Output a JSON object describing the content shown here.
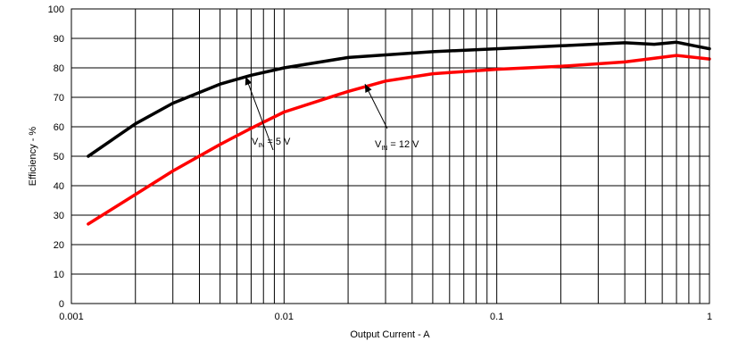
{
  "chart_data": {
    "type": "line",
    "x_scale": "log",
    "xlim": [
      0.001,
      1
    ],
    "ylim": [
      0,
      100
    ],
    "x_ticks": [
      0.001,
      0.01,
      0.1,
      1
    ],
    "x_tick_labels": [
      "0.001",
      "0.01",
      "0.1",
      "1"
    ],
    "y_ticks": [
      0,
      10,
      20,
      30,
      40,
      50,
      60,
      70,
      80,
      90,
      100
    ],
    "y_tick_labels": [
      "0",
      "10",
      "20",
      "30",
      "40",
      "50",
      "60",
      "70",
      "80",
      "90",
      "100"
    ],
    "xlabel": "Output Current - A",
    "ylabel": "Efficiency - %",
    "grid": true,
    "series": [
      {
        "name": "VIN = 5 V",
        "color": "#000000",
        "points": [
          [
            0.0012,
            50
          ],
          [
            0.002,
            61
          ],
          [
            0.003,
            68
          ],
          [
            0.005,
            74.5
          ],
          [
            0.007,
            77.5
          ],
          [
            0.01,
            80
          ],
          [
            0.02,
            83.5
          ],
          [
            0.05,
            85.5
          ],
          [
            0.1,
            86.5
          ],
          [
            0.2,
            87.5
          ],
          [
            0.4,
            88.5
          ],
          [
            0.55,
            88
          ],
          [
            0.7,
            88.7
          ],
          [
            0.85,
            87.5
          ],
          [
            1,
            86.5
          ]
        ]
      },
      {
        "name": "VIN = 12 V",
        "color": "#ff0000",
        "points": [
          [
            0.0012,
            27
          ],
          [
            0.002,
            37
          ],
          [
            0.003,
            45
          ],
          [
            0.005,
            54
          ],
          [
            0.007,
            59.5
          ],
          [
            0.01,
            65
          ],
          [
            0.02,
            72
          ],
          [
            0.03,
            75.5
          ],
          [
            0.05,
            78
          ],
          [
            0.1,
            79.5
          ],
          [
            0.2,
            80.5
          ],
          [
            0.4,
            82
          ],
          [
            0.7,
            84.2
          ],
          [
            1,
            83
          ]
        ]
      }
    ],
    "annotations": [
      {
        "main": "V",
        "sub": "IN",
        "rest": " = 5 V",
        "series": 0,
        "target": [
          0.0066,
          77
        ]
      },
      {
        "main": "V",
        "sub": "IN",
        "rest": " = 12 V",
        "series": 1,
        "target": [
          0.024,
          74.5
        ]
      }
    ]
  }
}
